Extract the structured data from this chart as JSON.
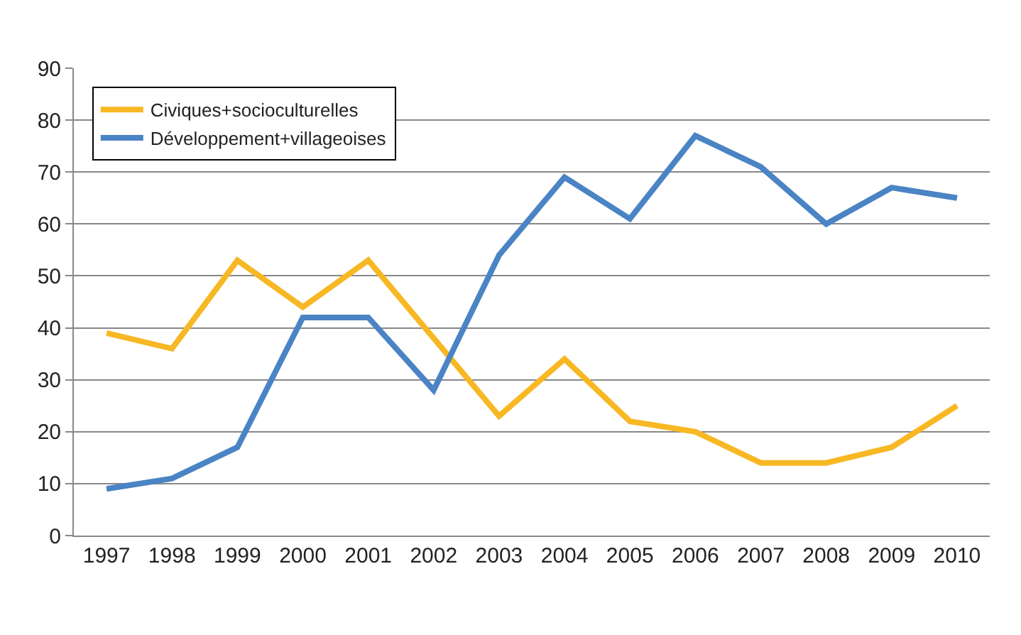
{
  "chart_data": {
    "type": "line",
    "categories": [
      "1997",
      "1998",
      "1999",
      "2000",
      "2001",
      "2002",
      "2003",
      "2004",
      "2005",
      "2006",
      "2007",
      "2008",
      "2009",
      "2010"
    ],
    "series": [
      {
        "name": "Civiques+socioculturelles",
        "color": "#f7b824",
        "values": [
          39,
          36,
          53,
          44,
          53,
          38,
          23,
          34,
          22,
          20,
          14,
          14,
          17,
          25
        ]
      },
      {
        "name": "Développement+villageoises",
        "color": "#4a84c4",
        "values": [
          9,
          11,
          17,
          42,
          42,
          28,
          54,
          69,
          61,
          77,
          71,
          60,
          67,
          65
        ]
      }
    ],
    "ylim": [
      0,
      90
    ],
    "yticks": [
      0,
      10,
      20,
      30,
      40,
      50,
      60,
      70,
      80,
      90
    ],
    "grid": "y",
    "legend": "top left",
    "marker": "none",
    "line_style": "solid"
  }
}
